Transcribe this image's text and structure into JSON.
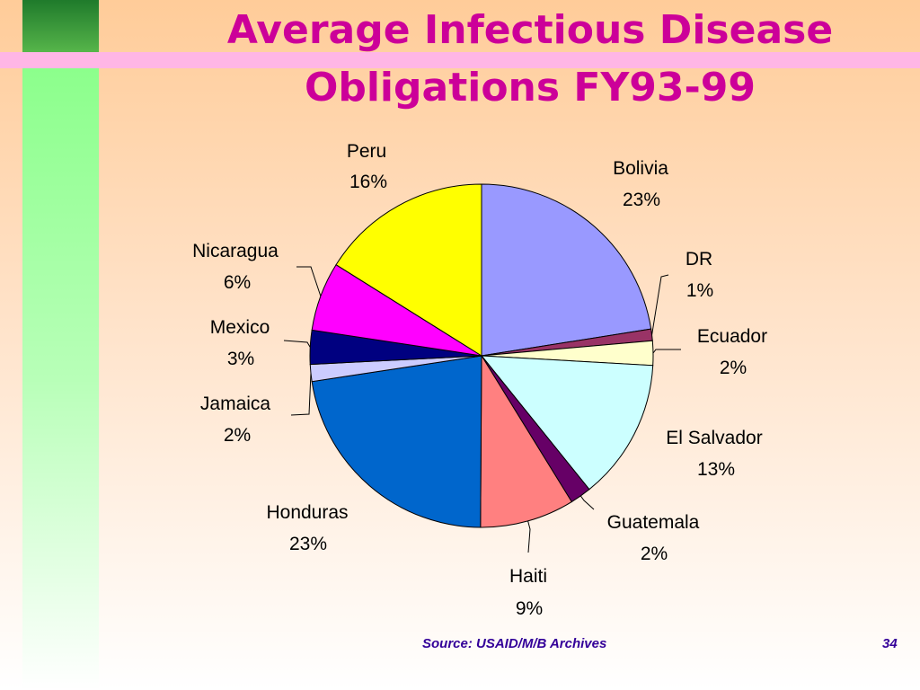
{
  "slide": {
    "title_line1": "Average Infectious Disease",
    "title_line2": "Obligations FY93-99",
    "source": "Source:  USAID/M/B Archives",
    "page_number": "34"
  },
  "chart_data": {
    "type": "pie",
    "start": "12 o'clock",
    "direction": "clockwise",
    "slices": [
      {
        "name": "Bolivia",
        "label": "23%",
        "value": 22.5,
        "color": "#9999ff"
      },
      {
        "name": "DR",
        "label": "1%",
        "value": 1.1,
        "color": "#993366"
      },
      {
        "name": "Ecuador",
        "label": "2%",
        "value": 2.3,
        "color": "#ffffcc"
      },
      {
        "name": "El Salvador",
        "label": "13%",
        "value": 13.3,
        "color": "#ccffff"
      },
      {
        "name": "Guatemala",
        "label": "2%",
        "value": 2.0,
        "color": "#660066"
      },
      {
        "name": "Haiti",
        "label": "9%",
        "value": 8.9,
        "color": "#ff8080"
      },
      {
        "name": "Honduras",
        "label": "23%",
        "value": 22.5,
        "color": "#0066cc"
      },
      {
        "name": "Jamaica",
        "label": "2%",
        "value": 1.6,
        "color": "#ccccff"
      },
      {
        "name": "Mexico",
        "label": "3%",
        "value": 3.2,
        "color": "#000080"
      },
      {
        "name": "Nicaragua",
        "label": "6%",
        "value": 6.5,
        "color": "#ff00ff"
      },
      {
        "name": "Peru",
        "label": "16%",
        "value": 16.1,
        "color": "#ffff00"
      }
    ]
  }
}
